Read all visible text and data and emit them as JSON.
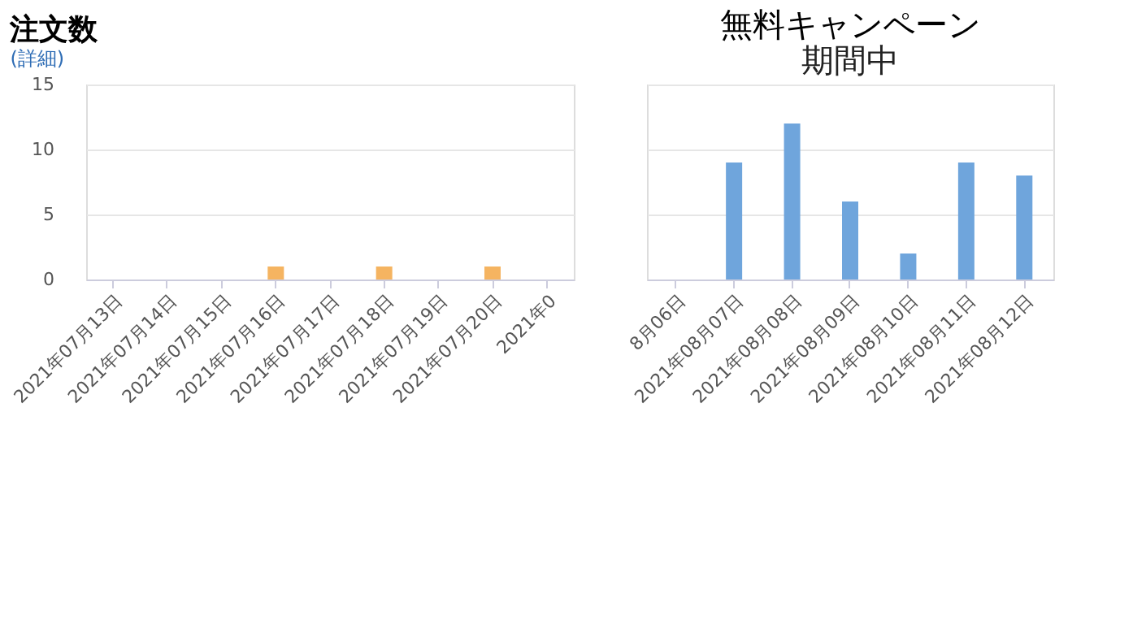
{
  "chart_data": [
    {
      "type": "bar",
      "title": "注文数",
      "subtitle": "(詳細)",
      "categories": [
        "2021年07月13日",
        "2021年07月14日",
        "2021年07月15日",
        "2021年07月16日",
        "2021年07月17日",
        "2021年07月18日",
        "2021年07月19日",
        "2021年07月20日",
        "2021年0"
      ],
      "values": [
        0,
        0,
        0,
        1,
        0,
        1,
        0,
        1,
        null
      ],
      "color": "#f5b461",
      "ylim": [
        0,
        15
      ],
      "yticks": [
        0,
        5,
        10,
        15
      ],
      "grid": "y"
    },
    {
      "type": "bar",
      "title": "無料キャンペーン",
      "subtitle": "期間中",
      "categories": [
        "8月06日",
        "2021年08月07日",
        "2021年08月08日",
        "2021年08月09日",
        "2021年08月10日",
        "2021年08月11日",
        "2021年08月12日"
      ],
      "values": [
        null,
        9,
        12,
        6,
        2,
        9,
        8
      ],
      "color": "#6fa5dc",
      "ylim": [
        0,
        15
      ],
      "yticks": [
        0,
        5,
        10,
        15
      ],
      "grid": "y",
      "tick_labels": "x"
    }
  ]
}
